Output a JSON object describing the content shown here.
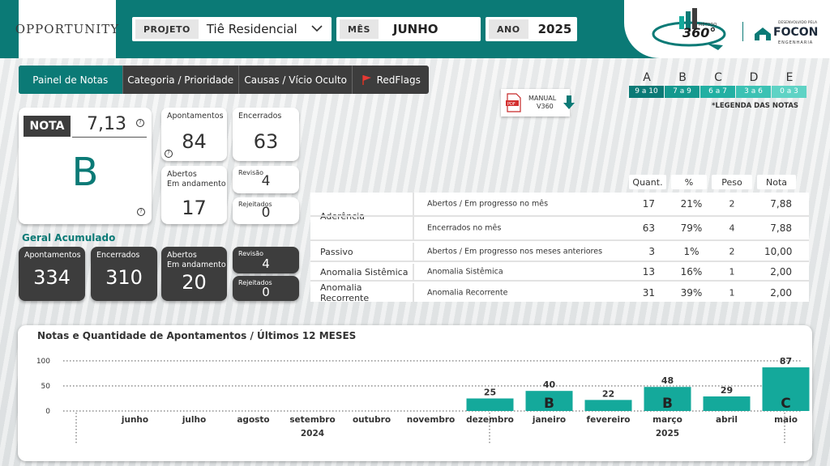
{
  "header": {
    "logo_text": "OPPORTUNITY",
    "filters": [
      {
        "label": "PROJETO",
        "value": "Tiê Residencial"
      },
      {
        "label": "MÊS",
        "value": "JUNHO"
      },
      {
        "label": "ANO",
        "value": "2025"
      }
    ],
    "brand": {
      "metodo": "MÉTODO",
      "v360": "360°",
      "developed_by": "DESENVOLVIDO PELA",
      "focon": "FOCON",
      "focon_sub": "ENGENHARIA"
    }
  },
  "nav": {
    "tabs": [
      "Painel de Notas",
      "Categoria / Prioridade",
      "Causas / Vício Oculto",
      "RedFlags"
    ]
  },
  "manual": {
    "label": "MANUAL",
    "sub": "V360"
  },
  "legend": {
    "letters": [
      "A",
      "B",
      "C",
      "D",
      "E"
    ],
    "ranges": [
      "9 a 10",
      "7 a 9",
      "6 a 7",
      "3 a 6",
      "0 a 3"
    ],
    "caption": "*LEGENDA DAS NOTAS"
  },
  "nota": {
    "label": "NOTA",
    "value": "7,13",
    "grade": "B"
  },
  "cards": {
    "apontamentos": {
      "label": "Apontamentos",
      "value": "84"
    },
    "encerrados": {
      "label": "Encerrados",
      "value": "63"
    },
    "abertos": {
      "label1": "Abertos",
      "label2": "Em andamento",
      "value": "17"
    },
    "revisao": {
      "label": "Revisão",
      "value": "4"
    },
    "rejeitados": {
      "label": "Rejeitados",
      "value": "0"
    }
  },
  "geral": {
    "title": "Geral Acumulado",
    "apontamentos": {
      "label": "Apontamentos",
      "value": "334"
    },
    "encerrados": {
      "label": "Encerrados",
      "value": "310"
    },
    "abertos": {
      "label1": "Abertos",
      "label2": "Em andamento",
      "value": "20"
    },
    "revisao": {
      "label": "Revisão",
      "value": "4"
    },
    "rejeitados": {
      "label": "Rejeitados",
      "value": "0"
    }
  },
  "table": {
    "headers": [
      "Quant.",
      "%",
      "Peso",
      "Nota"
    ],
    "groups": [
      "Aderência",
      "Passivo",
      "Anomalia Sistêmica",
      "Anomalia Recorrente"
    ],
    "rows": [
      {
        "desc": "Abertos / Em progresso no mês",
        "quant": "17",
        "pct": "21%",
        "peso": "2",
        "nota": "7,88"
      },
      {
        "desc": "Encerrados no mês",
        "quant": "63",
        "pct": "79%",
        "peso": "4",
        "nota": "7,88"
      },
      {
        "desc": "Abertos / Em progresso nos meses anteriores",
        "quant": "3",
        "pct": "1%",
        "peso": "2",
        "nota": "10,00"
      },
      {
        "desc": "Anomalia Sistêmica",
        "quant": "13",
        "pct": "16%",
        "peso": "1",
        "nota": "2,00"
      },
      {
        "desc": "Anomalia Recorrente",
        "quant": "31",
        "pct": "39%",
        "peso": "1",
        "nota": "2,00"
      }
    ]
  },
  "chart_data": {
    "type": "bar",
    "title": "Notas e Quantidade de Apontamentos / Últimos 12 MESES",
    "categories": [
      "junho",
      "julho",
      "agosto",
      "setembro",
      "outubro",
      "novembro",
      "dezembro",
      "janeiro",
      "fevereiro",
      "março",
      "abril",
      "maio"
    ],
    "years": [
      {
        "label": "2024",
        "first": 0,
        "last": 6
      },
      {
        "label": "2025",
        "first": 7,
        "last": 11
      }
    ],
    "values": [
      0,
      0,
      0,
      0,
      0,
      0,
      25,
      40,
      22,
      48,
      29,
      87
    ],
    "grades": [
      "",
      "",
      "",
      "",
      "",
      "",
      "",
      "B",
      "",
      "B",
      "",
      "C"
    ],
    "yticks": [
      0,
      50,
      100
    ],
    "ylim": [
      0,
      100
    ],
    "bar_color": "#14a99b",
    "grid": true
  },
  "colors": {
    "teal": "#0b7a76",
    "bar": "#14a99b",
    "dark": "#3d3d3d"
  }
}
